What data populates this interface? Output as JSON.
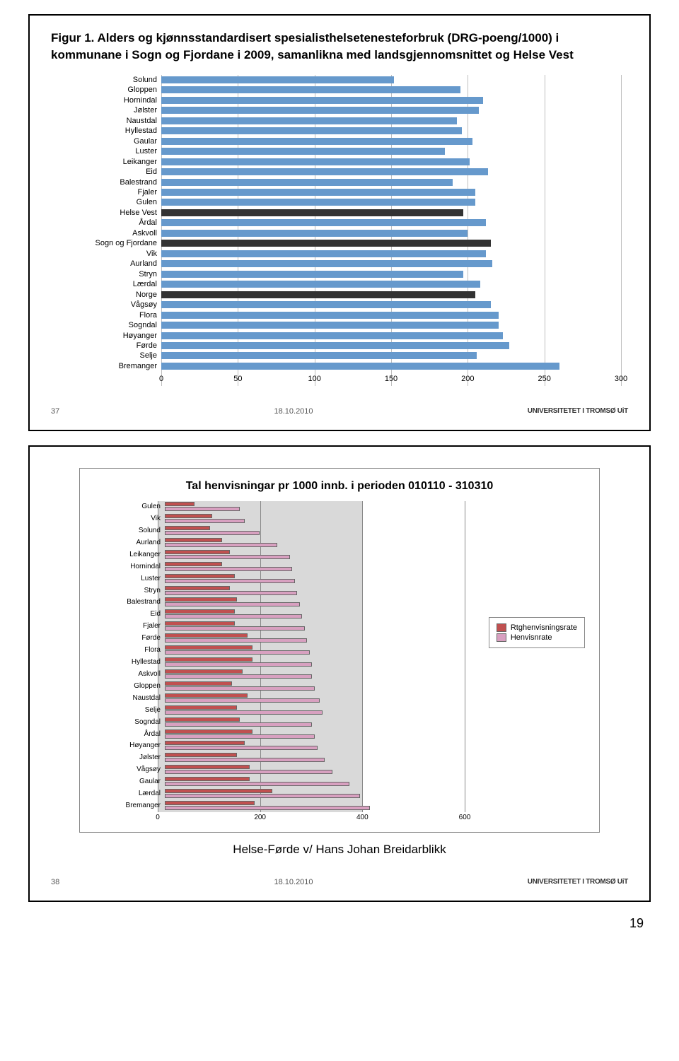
{
  "slide1": {
    "title": "Figur 1. Alders og kjønnsstandardisert spesialisthelsetenesteforbruk (DRG-poeng/1000) i kommunane i Sogn og Fjordane i 2009, samanlikna med landsgjennomsnittet og Helse Vest",
    "footer_num": "37",
    "footer_date": "18.10.2010",
    "footer_uni": "UNIVERSITETET I TROMSØ UiT",
    "xmax": 300,
    "ticks": [
      0,
      50,
      100,
      150,
      200,
      250,
      300
    ],
    "bar_color": "#6699cc",
    "bar_color_dark": "#333333",
    "grid_color": "#bfbfbf",
    "data": [
      {
        "label": "Solund",
        "value": 152,
        "dark": false
      },
      {
        "label": "Gloppen",
        "value": 195,
        "dark": false
      },
      {
        "label": "Hornindal",
        "value": 210,
        "dark": false
      },
      {
        "label": "Jølster",
        "value": 207,
        "dark": false
      },
      {
        "label": "Naustdal",
        "value": 193,
        "dark": false
      },
      {
        "label": "Hyllestad",
        "value": 196,
        "dark": false
      },
      {
        "label": "Gaular",
        "value": 203,
        "dark": false
      },
      {
        "label": "Luster",
        "value": 185,
        "dark": false
      },
      {
        "label": "Leikanger",
        "value": 201,
        "dark": false
      },
      {
        "label": "Eid",
        "value": 213,
        "dark": false
      },
      {
        "label": "Balestrand",
        "value": 190,
        "dark": false
      },
      {
        "label": "Fjaler",
        "value": 205,
        "dark": false
      },
      {
        "label": "Gulen",
        "value": 205,
        "dark": false
      },
      {
        "label": "Helse Vest",
        "value": 197,
        "dark": true
      },
      {
        "label": "Årdal",
        "value": 212,
        "dark": false
      },
      {
        "label": "Askvoll",
        "value": 200,
        "dark": false
      },
      {
        "label": "Sogn og Fjordane",
        "value": 215,
        "dark": true
      },
      {
        "label": "Vik",
        "value": 212,
        "dark": false
      },
      {
        "label": "Aurland",
        "value": 216,
        "dark": false
      },
      {
        "label": "Stryn",
        "value": 197,
        "dark": false
      },
      {
        "label": "Lærdal",
        "value": 208,
        "dark": false
      },
      {
        "label": "Norge",
        "value": 205,
        "dark": true
      },
      {
        "label": "Vågsøy",
        "value": 215,
        "dark": false
      },
      {
        "label": "Flora",
        "value": 220,
        "dark": false
      },
      {
        "label": "Sogndal",
        "value": 220,
        "dark": false
      },
      {
        "label": "Høyanger",
        "value": 223,
        "dark": false
      },
      {
        "label": "Førde",
        "value": 227,
        "dark": false
      },
      {
        "label": "Selje",
        "value": 206,
        "dark": false
      },
      {
        "label": "Bremanger",
        "value": 260,
        "dark": false
      }
    ]
  },
  "slide2": {
    "title": "Tal henvisningar pr 1000 innb. i perioden 010110 - 310310",
    "caption": "Helse-Førde v/ Hans Johan Breidarblikk",
    "footer_num": "38",
    "footer_date": "18.10.2010",
    "footer_uni": "UNIVERSITETET I TROMSØ UiT",
    "xmax": 600,
    "bg_max": 400,
    "ticks": [
      0,
      200,
      400,
      600
    ],
    "color_rt": "#c05050",
    "color_henvis": "#d8a0c0",
    "grid_color": "#888888",
    "bg_color": "#d9d9d9",
    "legend": {
      "rt": "Rtghenvisningsrate",
      "henvis": "Henvisnrate"
    },
    "data": [
      {
        "label": "Gulen",
        "rt": 60,
        "henvis": 150
      },
      {
        "label": "Vik",
        "rt": 95,
        "henvis": 160
      },
      {
        "label": "Solund",
        "rt": 90,
        "henvis": 190
      },
      {
        "label": "Aurland",
        "rt": 115,
        "henvis": 225
      },
      {
        "label": "Leikanger",
        "rt": 130,
        "henvis": 250
      },
      {
        "label": "Hornindal",
        "rt": 115,
        "henvis": 255
      },
      {
        "label": "Luster",
        "rt": 140,
        "henvis": 260
      },
      {
        "label": "Stryn",
        "rt": 130,
        "henvis": 265
      },
      {
        "label": "Balestrand",
        "rt": 145,
        "henvis": 270
      },
      {
        "label": "Eid",
        "rt": 140,
        "henvis": 275
      },
      {
        "label": "Fjaler",
        "rt": 140,
        "henvis": 280
      },
      {
        "label": "Førde",
        "rt": 165,
        "henvis": 285
      },
      {
        "label": "Flora",
        "rt": 175,
        "henvis": 290
      },
      {
        "label": "Hyllestad",
        "rt": 175,
        "henvis": 295
      },
      {
        "label": "Askvoll",
        "rt": 155,
        "henvis": 295
      },
      {
        "label": "Gloppen",
        "rt": 135,
        "henvis": 300
      },
      {
        "label": "Naustdal",
        "rt": 165,
        "henvis": 310
      },
      {
        "label": "Selje",
        "rt": 145,
        "henvis": 315
      },
      {
        "label": "Sogndal",
        "rt": 150,
        "henvis": 295
      },
      {
        "label": "Årdal",
        "rt": 175,
        "henvis": 300
      },
      {
        "label": "Høyanger",
        "rt": 160,
        "henvis": 305
      },
      {
        "label": "Jølster",
        "rt": 145,
        "henvis": 320
      },
      {
        "label": "Vågsøy",
        "rt": 170,
        "henvis": 335
      },
      {
        "label": "Gaular",
        "rt": 170,
        "henvis": 370
      },
      {
        "label": "Lærdal",
        "rt": 215,
        "henvis": 390
      },
      {
        "label": "Bremanger",
        "rt": 180,
        "henvis": 410
      }
    ]
  },
  "page_number": "19"
}
